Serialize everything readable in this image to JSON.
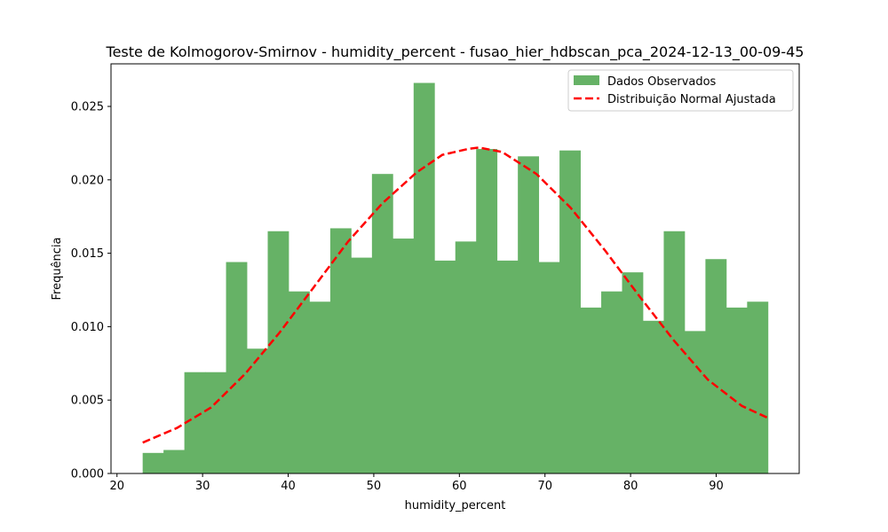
{
  "chart_data": {
    "type": "bar",
    "title": "Teste de Kolmogorov-Smirnov - humidity_percent - fusao_hier_hdbscan_pca_2024-12-13_00-09-45",
    "xlabel": "humidity_percent",
    "ylabel": "Frequência",
    "xlim": [
      19.3,
      99.7
    ],
    "ylim": [
      0,
      0.0279
    ],
    "xticks": [
      20,
      30,
      40,
      50,
      60,
      70,
      80,
      90
    ],
    "xtick_labels": [
      "20",
      "30",
      "40",
      "50",
      "60",
      "70",
      "80",
      "90"
    ],
    "yticks": [
      0,
      0.005,
      0.01,
      0.015,
      0.02,
      0.025
    ],
    "ytick_labels": [
      "0.000",
      "0.005",
      "0.010",
      "0.015",
      "0.020",
      "0.025"
    ],
    "bin_start": 23.0,
    "bin_width": 2.435,
    "series": [
      {
        "name": "Dados Observados",
        "kind": "histogram",
        "color": "#66b266",
        "values": [
          0.0014,
          0.0016,
          0.0069,
          0.0069,
          0.0144,
          0.0085,
          0.0165,
          0.0124,
          0.0117,
          0.0167,
          0.0147,
          0.0204,
          0.016,
          0.0266,
          0.0145,
          0.0158,
          0.0221,
          0.0145,
          0.0216,
          0.0144,
          0.022,
          0.0113,
          0.0124,
          0.0137,
          0.0104,
          0.0165,
          0.0097,
          0.0146,
          0.0113,
          0.0117
        ]
      },
      {
        "name": "Distribuição Normal Ajustada",
        "kind": "line",
        "color": "#ff0000",
        "style": "dashed",
        "x": [
          23.0,
          27.0,
          31.0,
          35.0,
          39.0,
          43.0,
          47.0,
          51.0,
          55.0,
          58.0,
          61.0,
          62.3,
          65.0,
          69.0,
          73.0,
          77.0,
          81.0,
          85.0,
          89.0,
          93.0,
          96.0
        ],
        "y": [
          0.0021,
          0.0031,
          0.0045,
          0.0068,
          0.0096,
          0.0127,
          0.0158,
          0.0184,
          0.0205,
          0.0217,
          0.0221,
          0.0222,
          0.0219,
          0.0204,
          0.0181,
          0.0152,
          0.0121,
          0.0091,
          0.0064,
          0.0046,
          0.0038
        ]
      }
    ],
    "legend": {
      "position": "top-right",
      "items": [
        "Dados Observados",
        "Distribuição Normal Ajustada"
      ]
    },
    "grid": false
  }
}
